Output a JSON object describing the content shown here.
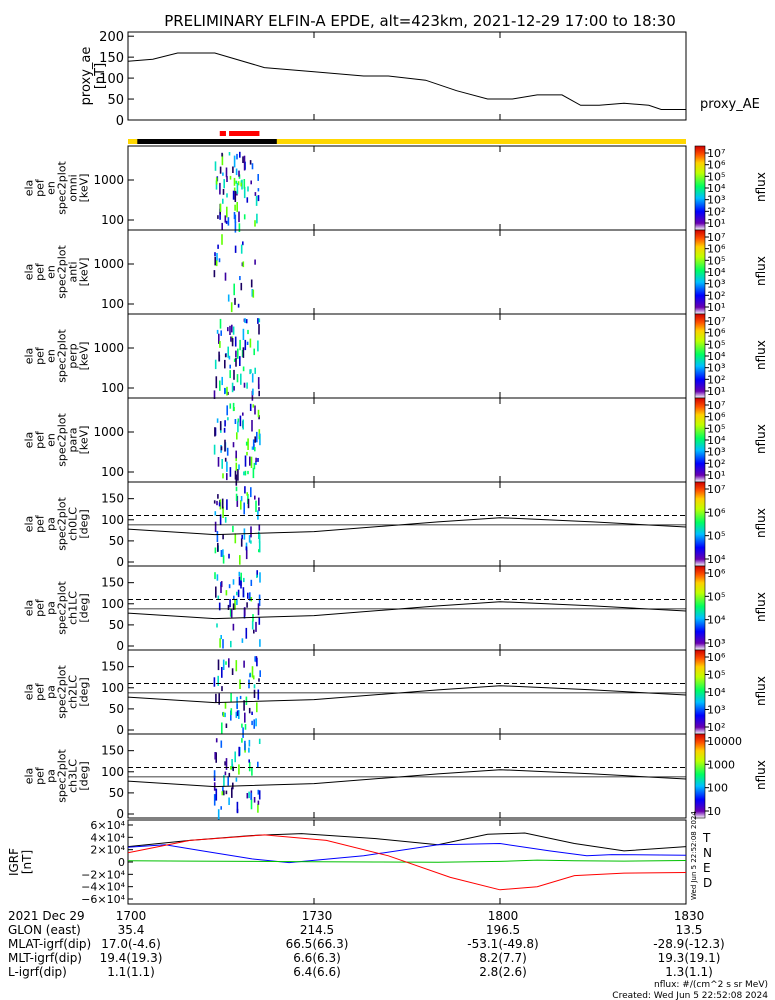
{
  "title": "PRELIMINARY ELFIN-A EPDE, alt=423km, 2021-12-29 17:00 to 18:30",
  "colors": {
    "bar_black": "#000000",
    "bar_yellow": "#ffd700",
    "bar_red": "#ff0000",
    "grf_T": "#000000",
    "grf_N": "#0000ff",
    "grf_E": "#00c000",
    "grf_D": "#ff0000"
  },
  "ae_panel": {
    "ylabel_lines": [
      "proxy_ae",
      "[nT]"
    ],
    "legend": "proxy_AE",
    "yticks": [
      "200",
      "150",
      "100",
      "50",
      "0"
    ],
    "ytick_values": [
      200,
      150,
      100,
      50,
      0
    ]
  },
  "spec_panels": [
    {
      "label_lines": [
        "ela",
        "pef",
        "en",
        "spec2plot",
        "omni",
        "[keV]"
      ],
      "yticks": [
        "1000",
        "100"
      ],
      "zlabel": "nflux",
      "zticks": [
        "10⁷",
        "10⁶",
        "10⁵",
        "10⁴",
        "10³",
        "10²",
        "10¹"
      ]
    },
    {
      "label_lines": [
        "ela",
        "pef",
        "en",
        "spec2plot",
        "anti",
        "[keV]"
      ],
      "yticks": [
        "1000",
        "100"
      ],
      "zlabel": "nflux",
      "zticks": [
        "10⁷",
        "10⁶",
        "10⁵",
        "10⁴",
        "10³",
        "10²",
        "10¹"
      ]
    },
    {
      "label_lines": [
        "ela",
        "pef",
        "en",
        "spec2plot",
        "perp",
        "[keV]"
      ],
      "yticks": [
        "1000",
        "100"
      ],
      "zlabel": "nflux",
      "zticks": [
        "10⁷",
        "10⁶",
        "10⁵",
        "10⁴",
        "10³",
        "10²",
        "10¹"
      ]
    },
    {
      "label_lines": [
        "ela",
        "pef",
        "en",
        "spec2plot",
        "para",
        "[keV]"
      ],
      "yticks": [
        "1000",
        "100"
      ],
      "zlabel": "nflux",
      "zticks": [
        "10⁷",
        "10⁶",
        "10⁵",
        "10⁴",
        "10³",
        "10²",
        "10¹"
      ]
    }
  ],
  "pa_panels": [
    {
      "label_lines": [
        "ela",
        "pef",
        "pa",
        "spec2plot",
        "ch0LC",
        "[deg]"
      ],
      "yticks": [
        "150",
        "100",
        "50",
        "0"
      ],
      "zlabel": "nflux",
      "zticks": [
        "10⁷",
        "10⁶",
        "10⁵",
        "10⁴"
      ]
    },
    {
      "label_lines": [
        "ela",
        "pef",
        "pa",
        "spec2plot",
        "ch1LC",
        "[deg]"
      ],
      "yticks": [
        "150",
        "100",
        "50",
        "0"
      ],
      "zlabel": "nflux",
      "zticks": [
        "10⁶",
        "10⁵",
        "10⁴",
        "10³"
      ]
    },
    {
      "label_lines": [
        "ela",
        "pef",
        "pa",
        "spec2plot",
        "ch2LC",
        "[deg]"
      ],
      "yticks": [
        "150",
        "100",
        "50",
        "0"
      ],
      "zlabel": "nflux",
      "zticks": [
        "10⁶",
        "10⁵",
        "10⁴",
        "10³",
        "10²"
      ]
    },
    {
      "label_lines": [
        "ela",
        "pef",
        "pa",
        "spec2plot",
        "ch3LC",
        "[deg]"
      ],
      "yticks": [
        "150",
        "100",
        "50",
        "0"
      ],
      "zlabel": "nflux",
      "zticks": [
        "10000",
        "1000",
        "100",
        "10"
      ]
    }
  ],
  "igrf_panel": {
    "ylabel_lines": [
      "IGRF",
      "[nT]"
    ],
    "yticks": [
      "6×10⁴",
      "4×10⁴",
      "2×10⁴",
      "0",
      "−2×10⁴",
      "−4×10⁴",
      "−6×10⁴"
    ],
    "legend": [
      "T",
      "N",
      "E",
      "D"
    ]
  },
  "side_stamp": "Wed Jun  5 22:52:08 2024",
  "xaxis": {
    "ticks": [
      "1700",
      "1730",
      "1800",
      "1830"
    ],
    "rows": [
      {
        "label": "2021 Dec 29",
        "values": [
          "1700",
          "1730",
          "1800",
          "1830"
        ]
      },
      {
        "label": "GLON (east)",
        "values": [
          "35.4",
          "214.5",
          "196.5",
          "13.5"
        ]
      },
      {
        "label": "MLAT-igrf(dip)",
        "values": [
          "17.0(-4.6)",
          "66.5(66.3)",
          "-53.1(-49.8)",
          "-28.9(-12.3)"
        ]
      },
      {
        "label": "MLT-igrf(dip)",
        "values": [
          "19.4(19.3)",
          "6.6(6.3)",
          "8.2(7.7)",
          "19.3(19.1)"
        ]
      },
      {
        "label": "L-igrf(dip)",
        "values": [
          "1.1(1.1)",
          "6.4(6.6)",
          "2.8(2.6)",
          "1.3(1.1)"
        ]
      }
    ]
  },
  "footer": [
    "nflux: #/(cm^2 s sr MeV)",
    "Created: Wed Jun  5 22:52:08 2024"
  ],
  "chart_data": {
    "type": "line",
    "x_range": [
      "17:00",
      "18:30"
    ],
    "proxy_ae": {
      "x_minutes": [
        0,
        4,
        8,
        14,
        22,
        30,
        38,
        42,
        48,
        53,
        58,
        62,
        66,
        70,
        73,
        76,
        80,
        84,
        86,
        90
      ],
      "values": [
        140,
        145,
        160,
        160,
        125,
        115,
        105,
        105,
        95,
        70,
        50,
        50,
        60,
        60,
        35,
        35,
        40,
        35,
        25,
        25
      ],
      "ylim": [
        0,
        200
      ]
    },
    "igrf": {
      "ylim": [
        -60000,
        60000
      ],
      "series": [
        {
          "name": "T",
          "x_minutes": [
            0,
            10,
            20,
            28,
            40,
            50,
            58,
            64,
            72,
            80,
            90
          ],
          "values": [
            25000,
            35000,
            43000,
            46000,
            38000,
            28000,
            45000,
            47000,
            30000,
            18000,
            25000
          ]
        },
        {
          "name": "N",
          "x_minutes": [
            0,
            6,
            12,
            20,
            26,
            38,
            50,
            60,
            68,
            74,
            78,
            90
          ],
          "values": [
            24000,
            28000,
            18000,
            5000,
            -1000,
            10000,
            28000,
            30000,
            18000,
            10000,
            12000,
            11000
          ]
        },
        {
          "name": "E",
          "x_minutes": [
            0,
            10,
            20,
            30,
            40,
            50,
            60,
            66,
            72,
            80,
            90
          ],
          "values": [
            2000,
            1500,
            1000,
            500,
            0,
            -500,
            1000,
            3000,
            2000,
            1500,
            2500
          ]
        },
        {
          "name": "D",
          "x_minutes": [
            0,
            10,
            22,
            32,
            42,
            52,
            60,
            66,
            72,
            80,
            90
          ],
          "values": [
            15000,
            35000,
            44000,
            35000,
            10000,
            -25000,
            -45000,
            -40000,
            -22000,
            -18000,
            -17000
          ]
        }
      ]
    },
    "pa_curves": {
      "solid_x_minutes": [
        0,
        14,
        30,
        50,
        60,
        75,
        90
      ],
      "solid_values": [
        78,
        65,
        72,
        95,
        105,
        95,
        83
      ],
      "dashed_value": 110
    },
    "energy_axis": {
      "yticks": [
        1000,
        100
      ],
      "scale": "log"
    },
    "pa_axis": {
      "ylim": [
        0,
        180
      ],
      "yticks": [
        150,
        100,
        50,
        0
      ]
    }
  }
}
